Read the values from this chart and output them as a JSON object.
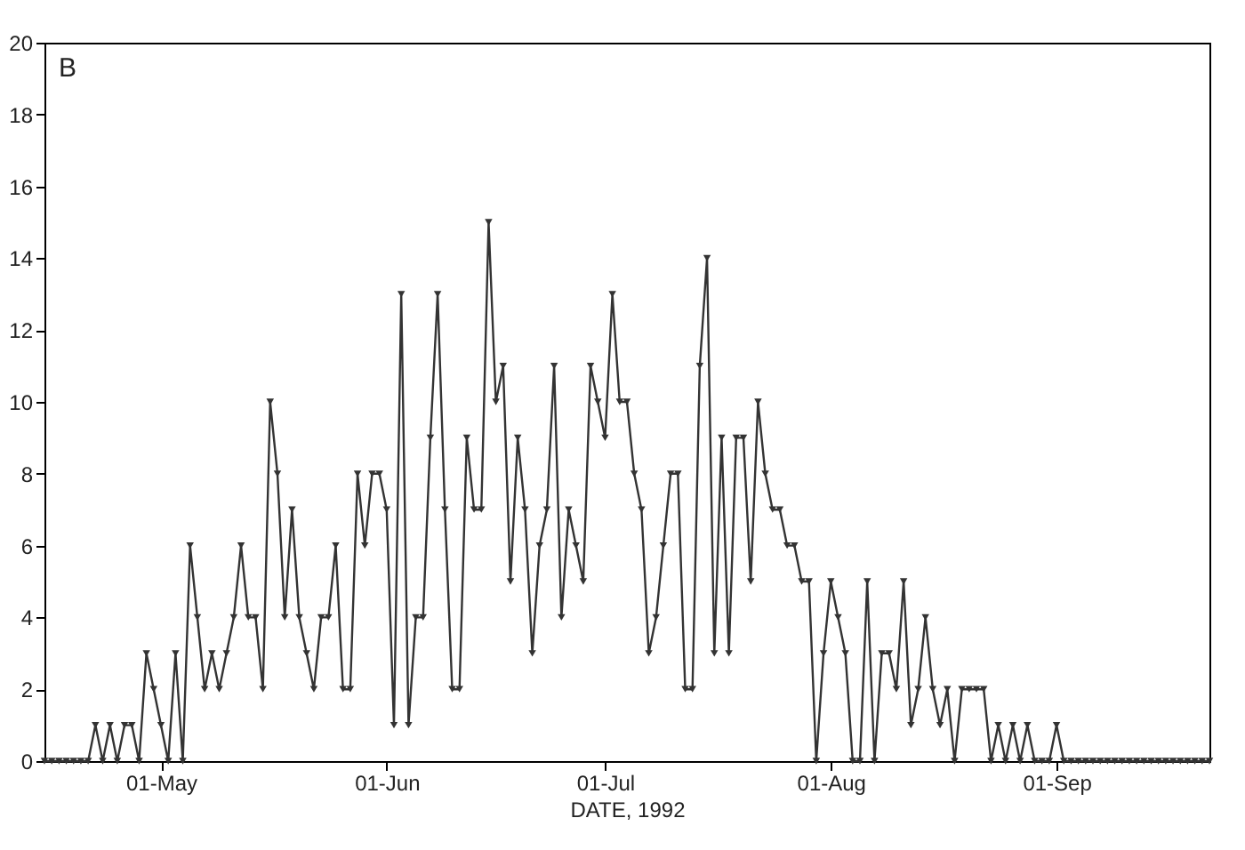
{
  "chart_data": {
    "type": "line",
    "xlabel": "DATE, 1992",
    "annotations": [
      "B"
    ],
    "x": [
      "1992-04-15",
      "1992-04-16",
      "1992-04-17",
      "1992-04-18",
      "1992-04-19",
      "1992-04-20",
      "1992-04-21",
      "1992-04-22",
      "1992-04-23",
      "1992-04-24",
      "1992-04-25",
      "1992-04-26",
      "1992-04-27",
      "1992-04-28",
      "1992-04-29",
      "1992-04-30",
      "1992-05-01",
      "1992-05-02",
      "1992-05-03",
      "1992-05-04",
      "1992-05-05",
      "1992-05-06",
      "1992-05-07",
      "1992-05-08",
      "1992-05-09",
      "1992-05-10",
      "1992-05-11",
      "1992-05-12",
      "1992-05-13",
      "1992-05-14",
      "1992-05-15",
      "1992-05-16",
      "1992-05-17",
      "1992-05-18",
      "1992-05-19",
      "1992-05-20",
      "1992-05-21",
      "1992-05-22",
      "1992-05-23",
      "1992-05-24",
      "1992-05-25",
      "1992-05-26",
      "1992-05-27",
      "1992-05-28",
      "1992-05-29",
      "1992-05-30",
      "1992-05-31",
      "1992-06-01",
      "1992-06-02",
      "1992-06-03",
      "1992-06-04",
      "1992-06-05",
      "1992-06-06",
      "1992-06-07",
      "1992-06-08",
      "1992-06-09",
      "1992-06-10",
      "1992-06-11",
      "1992-06-12",
      "1992-06-13",
      "1992-06-14",
      "1992-06-15",
      "1992-06-16",
      "1992-06-17",
      "1992-06-18",
      "1992-06-19",
      "1992-06-20",
      "1992-06-21",
      "1992-06-22",
      "1992-06-23",
      "1992-06-24",
      "1992-06-25",
      "1992-06-26",
      "1992-06-27",
      "1992-06-28",
      "1992-06-29",
      "1992-06-30",
      "1992-07-01",
      "1992-07-02",
      "1992-07-03",
      "1992-07-04",
      "1992-07-05",
      "1992-07-06",
      "1992-07-07",
      "1992-07-08",
      "1992-07-09",
      "1992-07-10",
      "1992-07-11",
      "1992-07-12",
      "1992-07-13",
      "1992-07-14",
      "1992-07-15",
      "1992-07-16",
      "1992-07-17",
      "1992-07-18",
      "1992-07-19",
      "1992-07-20",
      "1992-07-21",
      "1992-07-22",
      "1992-07-23",
      "1992-07-24",
      "1992-07-25",
      "1992-07-26",
      "1992-07-27",
      "1992-07-28",
      "1992-07-29",
      "1992-07-30",
      "1992-07-31",
      "1992-08-01",
      "1992-08-02",
      "1992-08-03",
      "1992-08-04",
      "1992-08-05",
      "1992-08-06",
      "1992-08-07",
      "1992-08-08",
      "1992-08-09",
      "1992-08-10",
      "1992-08-11",
      "1992-08-12",
      "1992-08-13",
      "1992-08-14",
      "1992-08-15",
      "1992-08-16",
      "1992-08-17",
      "1992-08-18",
      "1992-08-19",
      "1992-08-20",
      "1992-08-21",
      "1992-08-22",
      "1992-08-23",
      "1992-08-24",
      "1992-08-25",
      "1992-08-26",
      "1992-08-27",
      "1992-08-28",
      "1992-08-29",
      "1992-08-30",
      "1992-08-31",
      "1992-09-01",
      "1992-09-02",
      "1992-09-03",
      "1992-09-04",
      "1992-09-05",
      "1992-09-06",
      "1992-09-07",
      "1992-09-08",
      "1992-09-09",
      "1992-09-10",
      "1992-09-11",
      "1992-09-12",
      "1992-09-13",
      "1992-09-14",
      "1992-09-15",
      "1992-09-16",
      "1992-09-17",
      "1992-09-18",
      "1992-09-19",
      "1992-09-20",
      "1992-09-21",
      "1992-09-22"
    ],
    "series": [
      {
        "color": "#333333",
        "values": [
          0,
          0,
          0,
          0,
          0,
          0,
          0,
          1,
          0,
          1,
          0,
          1,
          1,
          0,
          3,
          2,
          1,
          0,
          3,
          0,
          6,
          4,
          2,
          3,
          2,
          3,
          4,
          6,
          4,
          4,
          2,
          10,
          8,
          4,
          7,
          4,
          3,
          2,
          4,
          4,
          6,
          2,
          2,
          8,
          6,
          8,
          8,
          7,
          1,
          13,
          1,
          4,
          4,
          9,
          13,
          7,
          2,
          2,
          9,
          7,
          7,
          15,
          10,
          11,
          5,
          9,
          7,
          3,
          6,
          7,
          11,
          4,
          7,
          6,
          5,
          11,
          10,
          9,
          13,
          10,
          10,
          8,
          7,
          3,
          4,
          6,
          8,
          8,
          2,
          2,
          11,
          14,
          3,
          9,
          3,
          9,
          9,
          5,
          10,
          8,
          7,
          7,
          6,
          6,
          5,
          5,
          0,
          3,
          5,
          4,
          3,
          0,
          0,
          5,
          0,
          3,
          3,
          2,
          5,
          1,
          2,
          4,
          2,
          1,
          2,
          0,
          2,
          2,
          2,
          2,
          0,
          1,
          0,
          1,
          0,
          1,
          0,
          0,
          0,
          1,
          0,
          0,
          0,
          0,
          0,
          0,
          0,
          0,
          0,
          0,
          0,
          0,
          0,
          0,
          0,
          0,
          0,
          0,
          0,
          0,
          0
        ]
      }
    ],
    "xlim": [
      "1992-04-15",
      "1992-09-22"
    ],
    "xticks": [
      {
        "value": "1992-05-01",
        "label": "01-May"
      },
      {
        "value": "1992-06-01",
        "label": "01-Jun"
      },
      {
        "value": "1992-07-01",
        "label": "01-Jul"
      },
      {
        "value": "1992-08-01",
        "label": "01-Aug"
      },
      {
        "value": "1992-09-01",
        "label": "01-Sep"
      }
    ],
    "ylim": [
      0,
      20
    ],
    "yticks": [
      0,
      2,
      4,
      6,
      8,
      10,
      12,
      14,
      16,
      18,
      20
    ],
    "grid": false,
    "marker": "triangle",
    "line_style": "solid"
  }
}
